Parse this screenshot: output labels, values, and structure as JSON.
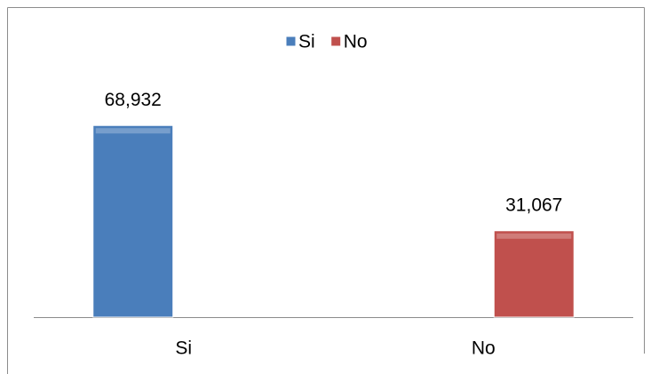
{
  "chart_data": {
    "type": "bar",
    "categories": [
      "Si",
      "No"
    ],
    "series": [
      {
        "name": "Si",
        "color": "#4a7ebb",
        "values": [
          68.932,
          null
        ],
        "value_labels": [
          "68,932",
          null
        ]
      },
      {
        "name": "No",
        "color": "#c0504d",
        "values": [
          null,
          31.067
        ],
        "value_labels": [
          null,
          "31,067"
        ]
      }
    ],
    "legend": "top"
  }
}
